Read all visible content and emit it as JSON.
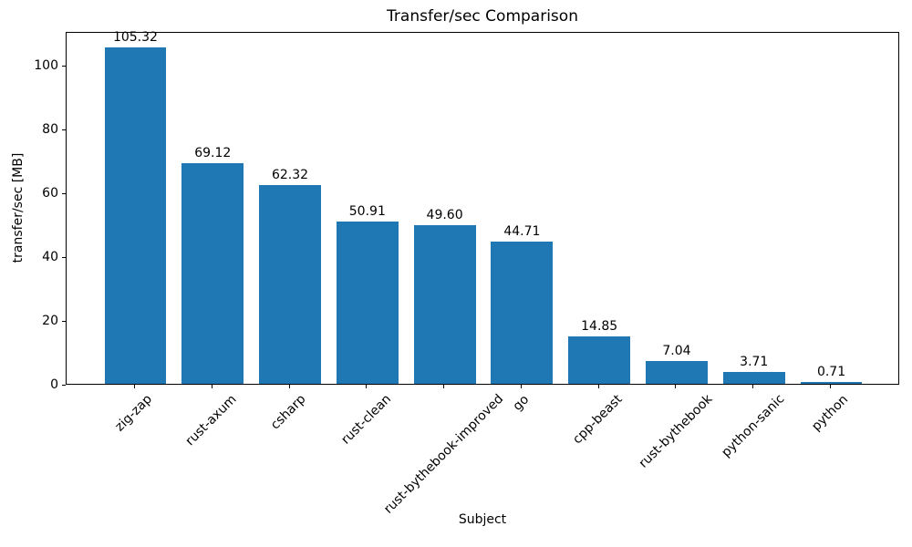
{
  "chart_data": {
    "type": "bar",
    "title": "Transfer/sec Comparison",
    "xlabel": "Subject",
    "ylabel": "transfer/sec [MB]",
    "categories": [
      "zig-zap",
      "rust-axum",
      "csharp",
      "rust-clean",
      "rust-bythebook-improved",
      "go",
      "cpp-beast",
      "rust-bythebook",
      "python-sanic",
      "python"
    ],
    "values": [
      105.32,
      69.12,
      62.32,
      50.91,
      49.6,
      44.71,
      14.85,
      7.04,
      3.71,
      0.71
    ],
    "value_labels": [
      "105.32",
      "69.12",
      "62.32",
      "50.91",
      "49.60",
      "44.71",
      "14.85",
      "7.04",
      "3.71",
      "0.71"
    ],
    "yticks": [
      0,
      20,
      40,
      60,
      80,
      100
    ],
    "ylim": [
      0,
      110.59
    ],
    "bar_color": "#1f77b4",
    "bar_relative_width": 0.8,
    "grid": false,
    "legend": false,
    "x_tick_rotation_deg": 45
  }
}
